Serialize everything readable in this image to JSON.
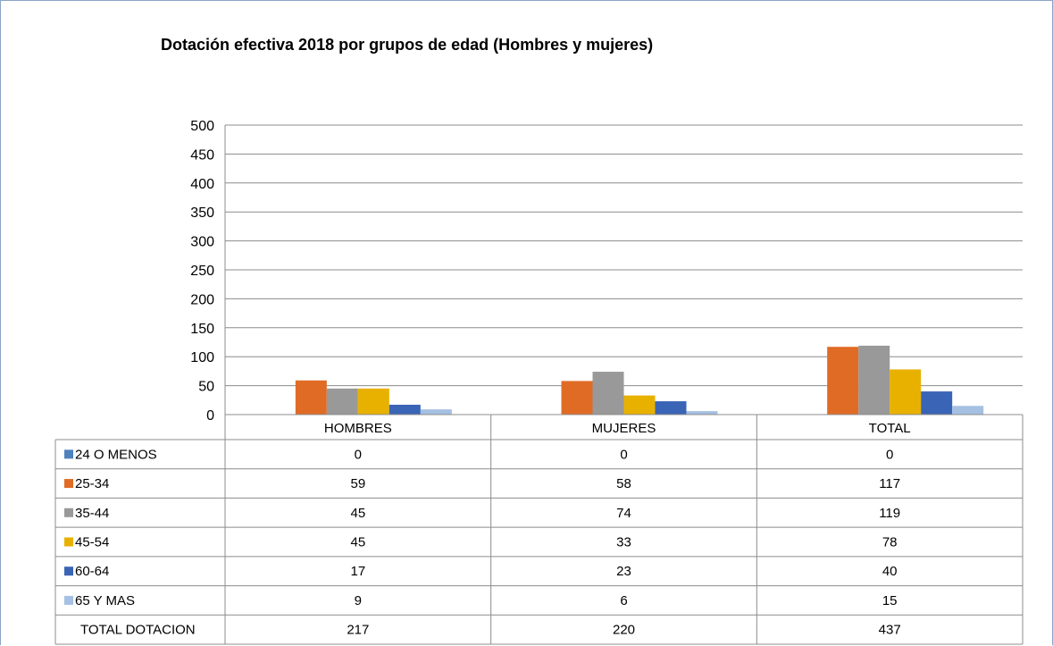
{
  "chart_data": {
    "type": "bar",
    "title": "Dotación efectiva 2018 por grupos de edad (Hombres y mujeres)",
    "categories": [
      "HOMBRES",
      "MUJERES",
      "TOTAL"
    ],
    "ylim": [
      0,
      500
    ],
    "yticks": [
      "0",
      "50",
      "100",
      "150",
      "200",
      "250",
      "300",
      "350",
      "400",
      "450",
      "500"
    ],
    "grid": true,
    "legend": "data-table",
    "series": [
      {
        "name": "24 O MENOS",
        "values": [
          0,
          0,
          0
        ],
        "color": "#4f81bd",
        "show_bar": true
      },
      {
        "name": "25-34",
        "values": [
          59,
          58,
          117
        ],
        "color": "#e06b25",
        "show_bar": true
      },
      {
        "name": "35-44",
        "values": [
          45,
          74,
          119
        ],
        "color": "#999999",
        "show_bar": true
      },
      {
        "name": "45-54",
        "values": [
          45,
          33,
          78
        ],
        "color": "#e8b100",
        "show_bar": true
      },
      {
        "name": "60-64",
        "values": [
          17,
          23,
          40
        ],
        "color": "#3a64b5",
        "show_bar": true
      },
      {
        "name": "65 Y MAS",
        "values": [
          9,
          6,
          15
        ],
        "color": "#a5c0e2",
        "show_bar": true
      },
      {
        "name": "TOTAL DOTACION",
        "values": [
          217,
          220,
          437
        ],
        "show_bar": false
      }
    ]
  }
}
